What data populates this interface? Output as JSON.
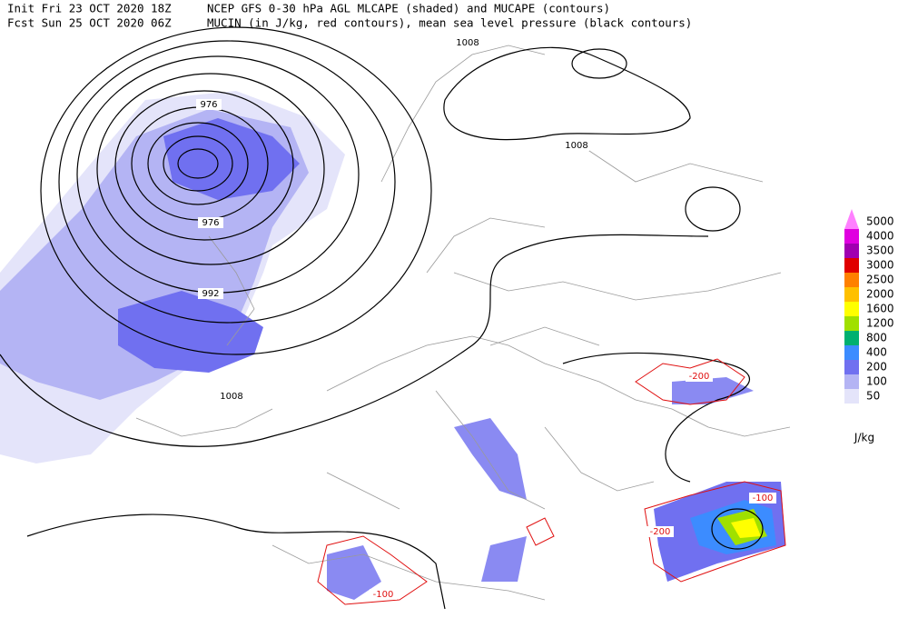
{
  "header": {
    "init": "Init  Fri 23 OCT 2020 18Z",
    "fcst": "Fcst Sun 25 OCT 2020 06Z",
    "title": "NCEP GFS 0-30 hPa AGL MLCAPE (shaded) and MUCAPE (contours)",
    "subtitle": "MUCIN (in J/kg, red contours), mean sea level pressure (black contours)"
  },
  "map": {
    "pressure_labels": [
      1008,
      976,
      976,
      992,
      1008,
      1008
    ],
    "cin_labels": [
      -200,
      -100,
      -200,
      -100
    ]
  },
  "legend": {
    "levels": [
      5000,
      4000,
      3500,
      3000,
      2500,
      2000,
      1600,
      1200,
      800,
      400,
      200,
      100,
      50
    ],
    "colors": [
      "#ff80ff",
      "#e000e0",
      "#a000b0",
      "#e00000",
      "#ff8000",
      "#ffc000",
      "#ffff00",
      "#a0e000",
      "#00b070",
      "#3c8cff",
      "#7070f0",
      "#b4b4f4",
      "#e4e4fa"
    ],
    "unit": "J/kg"
  }
}
